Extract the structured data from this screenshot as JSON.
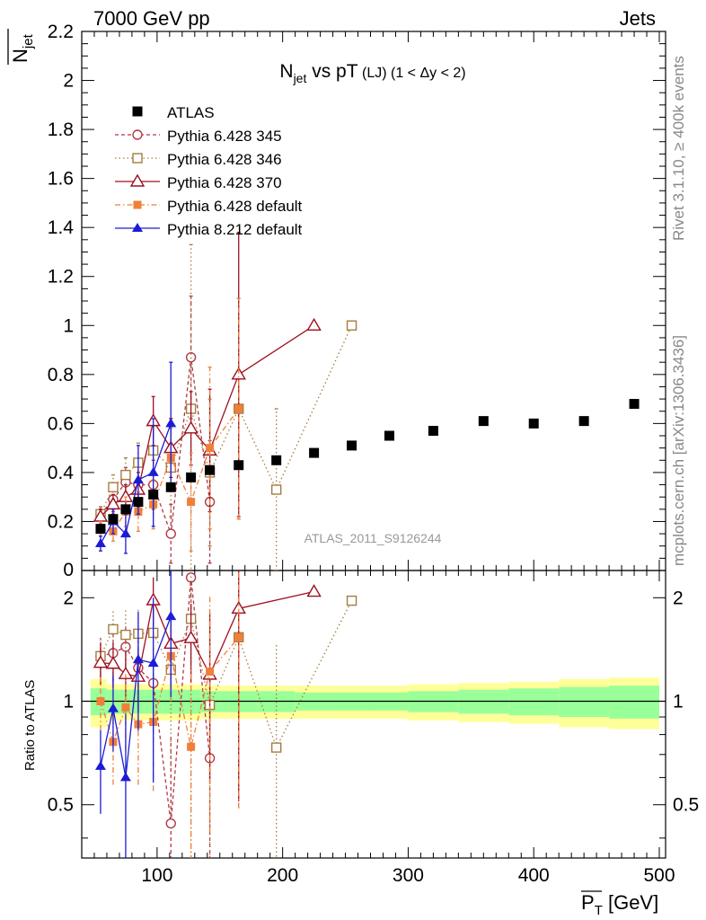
{
  "header": {
    "left": "7000 GeV pp",
    "right": "Jets"
  },
  "side": {
    "rivet": "Rivet 3.1.10, ≥ 400k events",
    "mcplots": "mcplots.cern.ch [arXiv:1306.3436]"
  },
  "chart_data": {
    "type": "scatter",
    "title_main": "N",
    "title_sub": "jet",
    "title_rest": " vs pT",
    "title_tail": " (LJ) (1 < Δy < 2)",
    "ylabel_main": "N",
    "ylabel_sub": "jet",
    "xlabel_main": "P",
    "xlabel_sub": "T",
    "xlabel_unit": " [GeV]",
    "ratio_ylabel": "Ratio to ATLAS",
    "watermark": "ATLAS_2011_S9126244",
    "xlim": [
      40,
      505
    ],
    "ylim": [
      0,
      2.2
    ],
    "ratio_ylim": [
      0.35,
      2.4
    ],
    "x_ticks": [
      100,
      200,
      300,
      400,
      500
    ],
    "x_tick_labels": [
      "100",
      "200",
      "300",
      "400",
      "500"
    ],
    "y_ticks": [
      0.2,
      0.4,
      0.6,
      0.8,
      1,
      1.2,
      1.4,
      1.6,
      1.8,
      2,
      2.2
    ],
    "y_tick_labels": [
      "0.2",
      "0.4",
      "0.6",
      "0.8",
      "1",
      "1.2",
      "1.4",
      "1.6",
      "1.8",
      "2",
      "2.2"
    ],
    "y_zero_label": "0",
    "ratio_ticks": [
      0.5,
      1,
      2
    ],
    "ratio_tick_labels": [
      "0.5",
      "1",
      "2"
    ],
    "atlas": {
      "name": "ATLAS",
      "x": [
        55,
        65,
        75,
        85,
        97,
        111,
        127,
        142,
        165,
        195,
        225,
        255,
        285,
        320,
        360,
        400,
        440,
        480
      ],
      "y": [
        0.17,
        0.21,
        0.25,
        0.28,
        0.31,
        0.34,
        0.38,
        0.41,
        0.43,
        0.45,
        0.48,
        0.51,
        0.55,
        0.57,
        0.61,
        0.6,
        0.61,
        0.68
      ],
      "band_edges": [
        47,
        60,
        70,
        80,
        90,
        105,
        118,
        135,
        150,
        180,
        210,
        240,
        270,
        300,
        340,
        380,
        420,
        460,
        500
      ],
      "band_inner": [
        0.09,
        0.08,
        0.08,
        0.08,
        0.08,
        0.08,
        0.08,
        0.07,
        0.07,
        0.07,
        0.06,
        0.06,
        0.06,
        0.07,
        0.08,
        0.09,
        0.1,
        0.11
      ],
      "band_outer": [
        0.16,
        0.12,
        0.12,
        0.12,
        0.12,
        0.12,
        0.12,
        0.11,
        0.11,
        0.11,
        0.11,
        0.11,
        0.11,
        0.12,
        0.13,
        0.14,
        0.16,
        0.17
      ]
    },
    "series": [
      {
        "name": "Pythia 6.428 345",
        "color": "#b03a48",
        "marker": "circle-open",
        "dash": "4,3",
        "x": [
          55,
          65,
          75,
          85,
          97,
          111,
          127,
          142
        ],
        "y": [
          0.23,
          0.29,
          0.36,
          0.35,
          0.35,
          0.15,
          0.87,
          0.28
        ],
        "err": [
          0.03,
          0.05,
          0.06,
          0.08,
          0.1,
          0.12,
          0.25,
          0.25
        ]
      },
      {
        "name": "Pythia 6.428 346",
        "color": "#a67c3d",
        "marker": "square-open",
        "dash": "1.5,3",
        "x": [
          55,
          65,
          75,
          85,
          97,
          111,
          127,
          142,
          165,
          195,
          255
        ],
        "y": [
          0.23,
          0.34,
          0.39,
          0.44,
          0.49,
          0.42,
          0.66,
          0.4,
          0.66,
          0.33,
          1.0
        ],
        "err": [
          0.03,
          0.05,
          0.07,
          0.08,
          0.1,
          0.2,
          0.67,
          0.3,
          0.45,
          0.33,
          0
        ]
      },
      {
        "name": "Pythia 6.428 370",
        "color": "#9c1020",
        "marker": "triangle-open",
        "dash": "",
        "x": [
          55,
          65,
          75,
          85,
          97,
          111,
          127,
          142,
          165,
          225
        ],
        "y": [
          0.22,
          0.27,
          0.3,
          0.33,
          0.61,
          0.5,
          0.58,
          0.49,
          0.8,
          1.0
        ],
        "err": [
          0.03,
          0.04,
          0.05,
          0.07,
          0.1,
          0.12,
          0.15,
          0.25,
          0.58,
          0
        ]
      },
      {
        "name": "Pythia 6.428 default",
        "color": "#f07f3a",
        "marker": "square-filled",
        "dash": "6,3,1.5,3",
        "x": [
          55,
          65,
          75,
          85,
          97,
          111,
          127,
          142,
          165
        ],
        "y": [
          0.17,
          0.16,
          0.24,
          0.24,
          0.27,
          0.46,
          0.28,
          0.5,
          0.66
        ],
        "err": [
          0.03,
          0.04,
          0.06,
          0.08,
          0.1,
          0.12,
          0.2,
          0.33,
          0.45
        ]
      },
      {
        "name": "Pythia 8.212 default",
        "color": "#1c1cd4",
        "marker": "triangle-filled",
        "dash": "",
        "x": [
          55,
          65,
          75,
          85,
          97,
          111
        ],
        "y": [
          0.11,
          0.2,
          0.15,
          0.37,
          0.4,
          0.6
        ],
        "err": [
          0.03,
          0.05,
          0.08,
          0.14,
          0.22,
          0.25
        ]
      }
    ]
  }
}
